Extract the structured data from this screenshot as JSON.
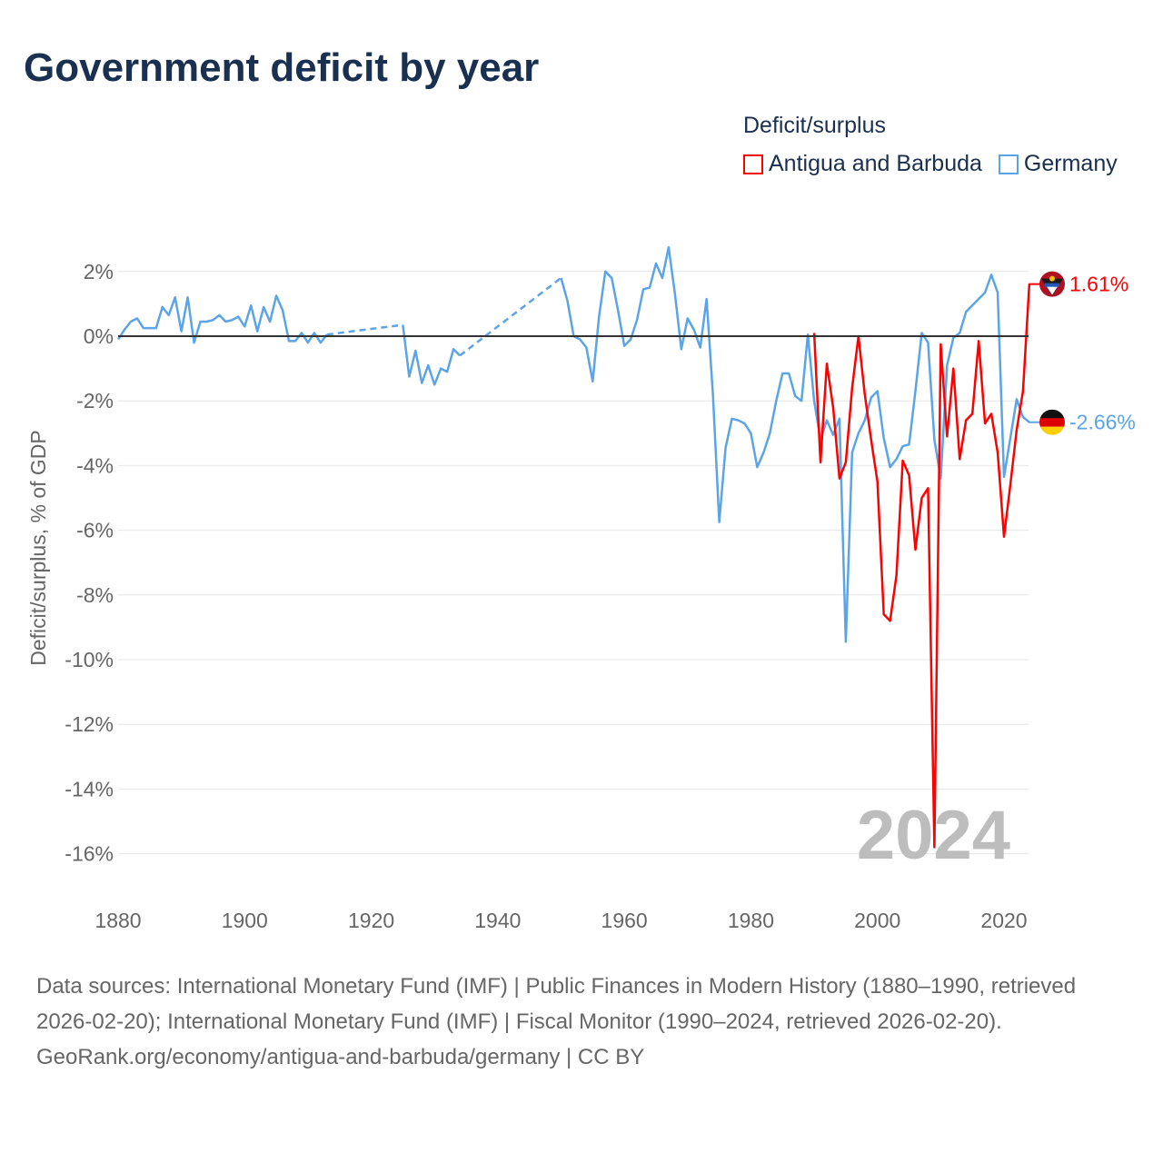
{
  "title": "Government deficit by year",
  "legend": {
    "title": "Deficit/surplus",
    "items": [
      {
        "name": "Antigua and Barbuda",
        "color": "#ff0000"
      },
      {
        "name": "Germany",
        "color": "#5ba4e8"
      }
    ]
  },
  "footer": {
    "sources": "Data sources: International Monetary Fund (IMF) | Public Finances in Modern History (1880–1990, retrieved 2026-02-20); International Monetary Fund (IMF) | Fiscal Monitor (1990–2024, retrieved 2026-02-20).",
    "credit": "GeoRank.org/economy/antigua-and-barbuda/germany | CC BY"
  },
  "chart_data": {
    "type": "line",
    "title": "Government deficit by year",
    "ylabel": "Deficit/surplus, % of GDP",
    "xlabel": "",
    "xlim": [
      1880,
      2024
    ],
    "ylim": [
      -16,
      2
    ],
    "x_ticks": [
      "1880",
      "1900",
      "1920",
      "1940",
      "1960",
      "1980",
      "2000",
      "2020"
    ],
    "y_ticks": [
      "2%",
      "0%",
      "-2%",
      "-4%",
      "-6%",
      "-8%",
      "-10%",
      "-12%",
      "-14%",
      "-16%"
    ],
    "year_label": "2024",
    "series": [
      {
        "name": "Antigua and Barbuda",
        "color": "#ff0000",
        "end_label": "1.61%",
        "points": [
          [
            1990,
            0.1
          ],
          [
            1991,
            -3.9
          ],
          [
            1992,
            -0.85
          ],
          [
            1993,
            -2.2
          ],
          [
            1994,
            -4.4
          ],
          [
            1995,
            -3.9
          ],
          [
            1996,
            -1.6
          ],
          [
            1997,
            0.0
          ],
          [
            1998,
            -1.8
          ],
          [
            1999,
            -3.2
          ],
          [
            2000,
            -4.5
          ],
          [
            2001,
            -8.6
          ],
          [
            2002,
            -8.8
          ],
          [
            2003,
            -7.4
          ],
          [
            2004,
            -3.85
          ],
          [
            2005,
            -4.3
          ],
          [
            2006,
            -6.6
          ],
          [
            2007,
            -5.0
          ],
          [
            2008,
            -4.7
          ],
          [
            2009,
            -15.8
          ],
          [
            2010,
            -0.25
          ],
          [
            2011,
            -3.1
          ],
          [
            2012,
            -1.0
          ],
          [
            2013,
            -3.8
          ],
          [
            2014,
            -2.6
          ],
          [
            2015,
            -2.4
          ],
          [
            2016,
            -0.15
          ],
          [
            2017,
            -2.7
          ],
          [
            2018,
            -2.4
          ],
          [
            2019,
            -3.6
          ],
          [
            2020,
            -6.2
          ],
          [
            2021,
            -4.6
          ],
          [
            2022,
            -2.9
          ],
          [
            2023,
            -1.7
          ],
          [
            2024,
            1.61
          ]
        ]
      },
      {
        "name": "Germany",
        "color": "#5ba4e8",
        "end_label": "-2.66%",
        "points": [
          [
            1880,
            -0.1
          ],
          [
            1881,
            0.2
          ],
          [
            1882,
            0.45
          ],
          [
            1883,
            0.55
          ],
          [
            1884,
            0.25
          ],
          [
            1885,
            0.25
          ],
          [
            1886,
            0.25
          ],
          [
            1887,
            0.9
          ],
          [
            1888,
            0.65
          ],
          [
            1889,
            1.2
          ],
          [
            1890,
            0.15
          ],
          [
            1891,
            1.2
          ],
          [
            1892,
            -0.2
          ],
          [
            1893,
            0.45
          ],
          [
            1894,
            0.45
          ],
          [
            1895,
            0.5
          ],
          [
            1896,
            0.65
          ],
          [
            1897,
            0.45
          ],
          [
            1898,
            0.5
          ],
          [
            1899,
            0.6
          ],
          [
            1900,
            0.3
          ],
          [
            1901,
            0.95
          ],
          [
            1902,
            0.15
          ],
          [
            1903,
            0.9
          ],
          [
            1904,
            0.45
          ],
          [
            1905,
            1.25
          ],
          [
            1906,
            0.8
          ],
          [
            1907,
            -0.15
          ],
          [
            1908,
            -0.15
          ],
          [
            1909,
            0.1
          ],
          [
            1910,
            -0.2
          ],
          [
            1911,
            0.1
          ],
          [
            1912,
            -0.2
          ],
          [
            1913,
            0.05
          ],
          [
            1925,
            0.35
          ],
          [
            1926,
            -1.25
          ],
          [
            1927,
            -0.45
          ],
          [
            1928,
            -1.45
          ],
          [
            1929,
            -0.9
          ],
          [
            1930,
            -1.5
          ],
          [
            1931,
            -1.0
          ],
          [
            1932,
            -1.1
          ],
          [
            1933,
            -0.4
          ],
          [
            1934,
            -0.6
          ],
          [
            1950,
            1.8
          ],
          [
            1951,
            1.1
          ],
          [
            1952,
            0.0
          ],
          [
            1953,
            -0.1
          ],
          [
            1954,
            -0.35
          ],
          [
            1955,
            -1.4
          ],
          [
            1956,
            0.6
          ],
          [
            1957,
            2.0
          ],
          [
            1958,
            1.8
          ],
          [
            1959,
            0.8
          ],
          [
            1960,
            -0.3
          ],
          [
            1961,
            -0.1
          ],
          [
            1962,
            0.5
          ],
          [
            1963,
            1.45
          ],
          [
            1964,
            1.5
          ],
          [
            1965,
            2.25
          ],
          [
            1966,
            1.8
          ],
          [
            1967,
            2.75
          ],
          [
            1968,
            1.3
          ],
          [
            1969,
            -0.4
          ],
          [
            1970,
            0.55
          ],
          [
            1971,
            0.2
          ],
          [
            1972,
            -0.35
          ],
          [
            1973,
            1.15
          ],
          [
            1974,
            -1.8
          ],
          [
            1975,
            -5.75
          ],
          [
            1976,
            -3.45
          ],
          [
            1977,
            -2.55
          ],
          [
            1978,
            -2.6
          ],
          [
            1979,
            -2.7
          ],
          [
            1980,
            -3.0
          ],
          [
            1981,
            -4.05
          ],
          [
            1982,
            -3.6
          ],
          [
            1983,
            -3.0
          ],
          [
            1984,
            -2.0
          ],
          [
            1985,
            -1.15
          ],
          [
            1986,
            -1.15
          ],
          [
            1987,
            -1.85
          ],
          [
            1988,
            -2.0
          ],
          [
            1989,
            0.05
          ],
          [
            1990,
            -2.0
          ],
          [
            1991,
            -3.2
          ],
          [
            1992,
            -2.6
          ],
          [
            1993,
            -3.05
          ],
          [
            1994,
            -2.55
          ],
          [
            1995,
            -9.45
          ],
          [
            1996,
            -3.6
          ],
          [
            1997,
            -3.0
          ],
          [
            1998,
            -2.6
          ],
          [
            1999,
            -1.9
          ],
          [
            2000,
            -1.7
          ],
          [
            2001,
            -3.15
          ],
          [
            2002,
            -4.05
          ],
          [
            2003,
            -3.8
          ],
          [
            2004,
            -3.4
          ],
          [
            2005,
            -3.35
          ],
          [
            2006,
            -1.7
          ],
          [
            2007,
            0.1
          ],
          [
            2008,
            -0.2
          ],
          [
            2009,
            -3.2
          ],
          [
            2010,
            -4.4
          ],
          [
            2011,
            -0.9
          ],
          [
            2012,
            -0.05
          ],
          [
            2013,
            0.1
          ],
          [
            2014,
            0.75
          ],
          [
            2015,
            0.95
          ],
          [
            2016,
            1.15
          ],
          [
            2017,
            1.35
          ],
          [
            2018,
            1.9
          ],
          [
            2019,
            1.35
          ],
          [
            2020,
            -4.35
          ],
          [
            2021,
            -3.15
          ],
          [
            2022,
            -1.95
          ],
          [
            2023,
            -2.5
          ],
          [
            2024,
            -2.66
          ]
        ]
      }
    ]
  }
}
